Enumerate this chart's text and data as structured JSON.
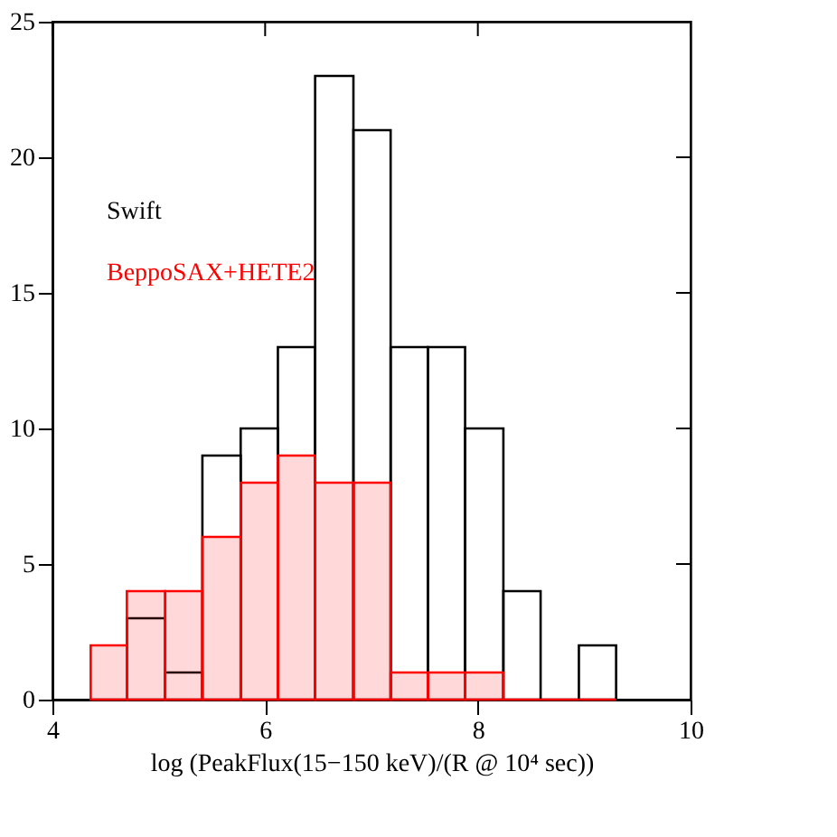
{
  "chart_data": {
    "type": "histogram",
    "xlabel": "log (PeakFlux(15−150 keV)/(R @ 10⁴ sec))",
    "bins": [
      4.36,
      4.7,
      5.06,
      5.41,
      5.77,
      6.12,
      6.47,
      6.83,
      7.18,
      7.53,
      7.88,
      8.24,
      8.59,
      8.95,
      9.3
    ],
    "series": [
      {
        "name": "Swift",
        "color": "#000000",
        "values": [
          0,
          3,
          1,
          9,
          10,
          13,
          23,
          21,
          13,
          13,
          10,
          4,
          0,
          2
        ]
      },
      {
        "name": "BeppoSAX+HETE2",
        "color": "#ff0000",
        "values": [
          2,
          4,
          4,
          6,
          8,
          9,
          8,
          8,
          1,
          1,
          1,
          0,
          0,
          0
        ]
      }
    ],
    "xlim": [
      4,
      10
    ],
    "ylim": [
      0,
      25
    ],
    "xticks": [
      4,
      6,
      8,
      10
    ],
    "yticks": [
      0,
      5,
      10,
      15,
      20,
      25
    ],
    "legend": "top left",
    "grid": false
  }
}
